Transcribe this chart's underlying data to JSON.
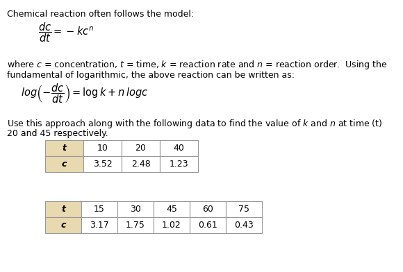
{
  "title_line": "Chemical reaction often follows the model:",
  "equation1": "$\\dfrac{dc}{dt} = -kc^n$",
  "description1": "where $c$ = concentration, $t$ = time, $k$ = reaction rate and $n$ = reaction order.  Using the",
  "description2": "fundamental of logarithmic, the above reaction can be written as:",
  "equation2": "$log\\left(-\\dfrac{dc}{dt}\\right) = \\log k + n\\, logc$",
  "description3": "Use this approach along with the following data to find the value of $k$ and $n$ at time (t)",
  "description4": "20 and 45 respectively.",
  "table1_headers": [
    "t",
    "10",
    "20",
    "40"
  ],
  "table1_row": [
    "c",
    "3.52",
    "2.48",
    "1.23"
  ],
  "table2_headers": [
    "t",
    "15",
    "30",
    "45",
    "60",
    "75"
  ],
  "table2_row": [
    "c",
    "3.17",
    "1.75",
    "1.02",
    "0.61",
    "0.43"
  ],
  "header_bg": "#e8d9b0",
  "cell_bg": "#ffffff",
  "border_color": "#999999",
  "text_color": "#000000",
  "bg_color": "#ffffff",
  "body_fontsize": 9.0,
  "eq_fontsize": 10.5,
  "table_fontsize": 9.0
}
